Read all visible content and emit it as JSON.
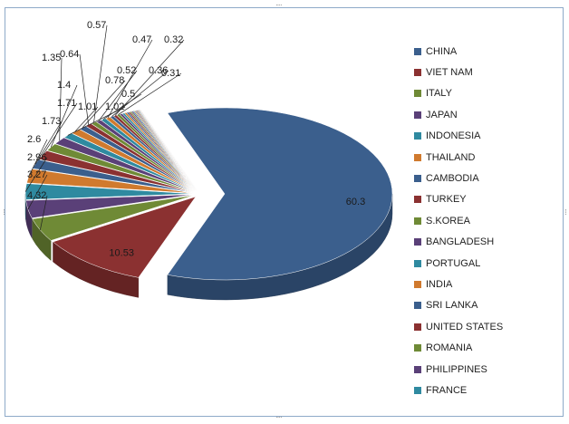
{
  "chart_data": {
    "type": "pie",
    "title": "",
    "slices": [
      {
        "label": "CHINA",
        "value": 60.3,
        "color": "#3b5f8d"
      },
      {
        "label": "VIET NAM",
        "value": 10.53,
        "color": "#8b3131"
      },
      {
        "label": "ITALY",
        "value": 4.32,
        "color": "#6f8a36"
      },
      {
        "label": "JAPAN",
        "value": 3.27,
        "color": "#5a4078"
      },
      {
        "label": "INDONESIA",
        "value": 2.96,
        "color": "#2f8aa0"
      },
      {
        "label": "THAILAND",
        "value": 2.6,
        "color": "#d07a2e"
      },
      {
        "label": "CAMBODIA",
        "value": 1.73,
        "color": "#3b5f8d"
      },
      {
        "label": "TURKEY",
        "value": 1.71,
        "color": "#8b3131"
      },
      {
        "label": "S.KOREA",
        "value": 1.4,
        "color": "#6f8a36"
      },
      {
        "label": "BANGLADESH",
        "value": 1.35,
        "color": "#5a4078"
      },
      {
        "label": "PORTUGAL",
        "value": 1.02,
        "color": "#2f8aa0"
      },
      {
        "label": "INDIA",
        "value": 1.01,
        "color": "#d07a2e"
      },
      {
        "label": "SRI LANKA",
        "value": 0.78,
        "color": "#3b5f8d"
      },
      {
        "label": "UNITED STATES",
        "value": 0.64,
        "color": "#8b3131"
      },
      {
        "label": "ROMANIA",
        "value": 0.57,
        "color": "#6f8a36"
      },
      {
        "label": "PHILIPPINES",
        "value": 0.52,
        "color": "#5a4078"
      },
      {
        "label": "FRANCE",
        "value": 0.5,
        "color": "#2f8aa0"
      },
      {
        "label": "",
        "value": 0.47,
        "color": "#d07a2e"
      },
      {
        "label": "",
        "value": 0.36,
        "color": "#3b5f8d"
      },
      {
        "label": "",
        "value": 0.32,
        "color": "#8b3131"
      },
      {
        "label": "",
        "value": 0.31,
        "color": "#6f8a36"
      },
      {
        "label": "",
        "value": 0.25,
        "color": "#5a4078"
      },
      {
        "label": "",
        "value": 0.22,
        "color": "#2f8aa0"
      },
      {
        "label": "",
        "value": 0.2,
        "color": "#d07a2e"
      },
      {
        "label": "",
        "value": 0.18,
        "color": "#3b5f8d"
      },
      {
        "label": "",
        "value": 0.16,
        "color": "#8b3131"
      },
      {
        "label": "",
        "value": 0.15,
        "color": "#6f8a36"
      },
      {
        "label": "",
        "value": 0.14,
        "color": "#5a4078"
      },
      {
        "label": "",
        "value": 0.12,
        "color": "#2f8aa0"
      },
      {
        "label": "",
        "value": 0.11,
        "color": "#d07a2e"
      },
      {
        "label": "",
        "value": 0.1,
        "color": "#3b5f8d"
      },
      {
        "label": "",
        "value": 0.09,
        "color": "#8b3131"
      },
      {
        "label": "",
        "value": 0.08,
        "color": "#6f8a36"
      },
      {
        "label": "",
        "value": 0.07,
        "color": "#5a4078"
      },
      {
        "label": "",
        "value": 0.06,
        "color": "#2f8aa0"
      },
      {
        "label": "",
        "value": 0.05,
        "color": "#d07a2e"
      },
      {
        "label": "",
        "value": 0.04,
        "color": "#3b5f8d"
      },
      {
        "label": "",
        "value": 0.03,
        "color": "#8b3131"
      }
    ],
    "data_labels": [
      "60.3",
      "10.53",
      "4.32",
      "3.27",
      "2.96",
      "2.6",
      "1.73",
      "1.71",
      "1.4",
      "1.35",
      "1.02",
      "1.01",
      "0.78",
      "0.64",
      "0.57",
      "0.52",
      "0.5",
      "0.47",
      "0.36",
      "0.32",
      "0.31"
    ],
    "legend_position": "right",
    "style": "3d-exploded-pie"
  },
  "chart_frame": {
    "resize_handle_glyph": "····",
    "border_color": "#8eaac9"
  }
}
